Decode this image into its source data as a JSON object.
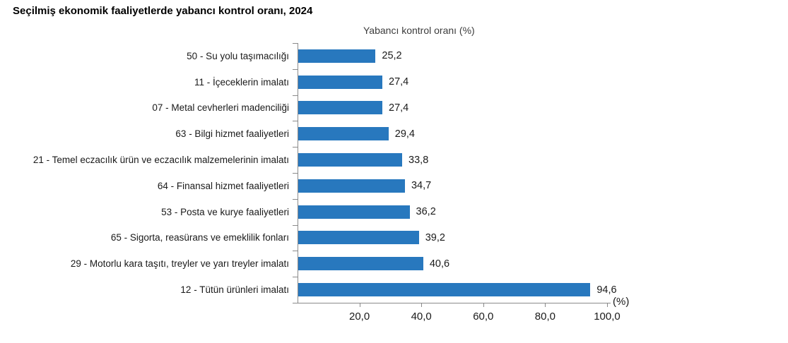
{
  "title": "Seçilmiş ekonomik faaliyetlerde yabancı kontrol oranı, 2024",
  "chart_data": {
    "type": "bar",
    "orientation": "horizontal",
    "axis_title": "Yabancı kontrol oranı (%)",
    "unit_label": "(%)",
    "categories": [
      "50 - Su yolu taşımacılığı",
      "11 - İçeceklerin imalatı",
      "07 - Metal cevherleri madenciliği",
      "63 - Bilgi hizmet faaliyetleri",
      "21 - Temel eczacılık ürün ve eczacılık malzemelerinin imalatı",
      "64 - Finansal hizmet faaliyetleri",
      "53 - Posta ve kurye faaliyetleri",
      "65 - Sigorta, reasürans ve emeklilik fonları",
      "29 - Motorlu kara taşıtı, treyler ve yarı treyler imalatı",
      "12 - Tütün ürünleri imalatı"
    ],
    "values": [
      25.2,
      27.4,
      27.4,
      29.4,
      33.8,
      34.7,
      36.2,
      39.2,
      40.6,
      94.6
    ],
    "value_labels": [
      "25,2",
      "27,4",
      "27,4",
      "29,4",
      "33,8",
      "34,7",
      "36,2",
      "39,2",
      "40,6",
      "94,6"
    ],
    "x_tick_values": [
      20,
      40,
      60,
      80,
      100
    ],
    "x_tick_labels": [
      "20,0",
      "40,0",
      "60,0",
      "80,0",
      "100,0"
    ],
    "xlim": [
      0,
      100
    ],
    "grid": false,
    "legend": "none",
    "colors": {
      "bar": "#2878BE",
      "axis": "#8A8A8A",
      "text": "#1A1A1A"
    }
  }
}
